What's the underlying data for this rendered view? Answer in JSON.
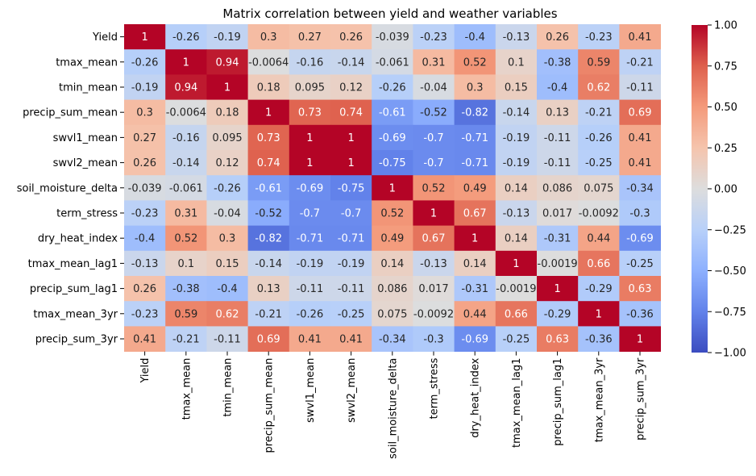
{
  "chart_data": {
    "type": "heatmap",
    "title": "Matrix correlation between yield and weather variables",
    "labels": [
      "Yield",
      "tmax_mean",
      "tmin_mean",
      "precip_sum_mean",
      "swvl1_mean",
      "swvl2_mean",
      "soil_moisture_delta",
      "term_stress",
      "dry_heat_index",
      "tmax_mean_lag1",
      "precip_sum_lag1",
      "tmax_mean_3yr",
      "precip_sum_3yr"
    ],
    "values": [
      [
        1,
        -0.26,
        -0.19,
        0.3,
        0.27,
        0.26,
        -0.039,
        -0.23,
        -0.4,
        -0.13,
        0.26,
        -0.23,
        0.41
      ],
      [
        -0.26,
        1,
        0.94,
        -0.0064,
        -0.16,
        -0.14,
        -0.061,
        0.31,
        0.52,
        0.1,
        -0.38,
        0.59,
        -0.21
      ],
      [
        -0.19,
        0.94,
        1,
        0.18,
        0.095,
        0.12,
        -0.26,
        -0.04,
        0.3,
        0.15,
        -0.4,
        0.62,
        -0.11
      ],
      [
        0.3,
        -0.0064,
        0.18,
        1,
        0.73,
        0.74,
        -0.61,
        -0.52,
        -0.82,
        -0.14,
        0.13,
        -0.21,
        0.69
      ],
      [
        0.27,
        -0.16,
        0.095,
        0.73,
        1,
        1,
        -0.69,
        -0.7,
        -0.71,
        -0.19,
        -0.11,
        -0.26,
        0.41
      ],
      [
        0.26,
        -0.14,
        0.12,
        0.74,
        1,
        1,
        -0.75,
        -0.7,
        -0.71,
        -0.19,
        -0.11,
        -0.25,
        0.41
      ],
      [
        -0.039,
        -0.061,
        -0.26,
        -0.61,
        -0.69,
        -0.75,
        1,
        0.52,
        0.49,
        0.14,
        0.086,
        0.075,
        -0.34
      ],
      [
        -0.23,
        0.31,
        -0.04,
        -0.52,
        -0.7,
        -0.7,
        0.52,
        1,
        0.67,
        -0.13,
        0.017,
        -0.0092,
        -0.3
      ],
      [
        -0.4,
        0.52,
        0.3,
        -0.82,
        -0.71,
        -0.71,
        0.49,
        0.67,
        1,
        0.14,
        -0.31,
        0.44,
        -0.69
      ],
      [
        -0.13,
        0.1,
        0.15,
        -0.14,
        -0.19,
        -0.19,
        0.14,
        -0.13,
        0.14,
        1,
        -0.0019,
        0.66,
        -0.25
      ],
      [
        0.26,
        -0.38,
        -0.4,
        0.13,
        -0.11,
        -0.11,
        0.086,
        0.017,
        -0.31,
        -0.0019,
        1,
        -0.29,
        0.63
      ],
      [
        -0.23,
        0.59,
        0.62,
        -0.21,
        -0.26,
        -0.25,
        0.075,
        -0.0092,
        0.44,
        0.66,
        -0.29,
        1,
        -0.36
      ],
      [
        0.41,
        -0.21,
        -0.11,
        0.69,
        0.41,
        0.41,
        -0.34,
        -0.3,
        -0.69,
        -0.25,
        0.63,
        -0.36,
        1
      ]
    ],
    "value_labels": [
      [
        "1",
        "-0.26",
        "-0.19",
        "0.3",
        "0.27",
        "0.26",
        "-0.039",
        "-0.23",
        "-0.4",
        "-0.13",
        "0.26",
        "-0.23",
        "0.41"
      ],
      [
        "-0.26",
        "1",
        "0.94",
        "-0.0064",
        "-0.16",
        "-0.14",
        "-0.061",
        "0.31",
        "0.52",
        "0.1",
        "-0.38",
        "0.59",
        "-0.21"
      ],
      [
        "-0.19",
        "0.94",
        "1",
        "0.18",
        "0.095",
        "0.12",
        "-0.26",
        "-0.04",
        "0.3",
        "0.15",
        "-0.4",
        "0.62",
        "-0.11"
      ],
      [
        "0.3",
        "-0.0064",
        "0.18",
        "1",
        "0.73",
        "0.74",
        "-0.61",
        "-0.52",
        "-0.82",
        "-0.14",
        "0.13",
        "-0.21",
        "0.69"
      ],
      [
        "0.27",
        "-0.16",
        "0.095",
        "0.73",
        "1",
        "1",
        "-0.69",
        "-0.7",
        "-0.71",
        "-0.19",
        "-0.11",
        "-0.26",
        "0.41"
      ],
      [
        "0.26",
        "-0.14",
        "0.12",
        "0.74",
        "1",
        "1",
        "-0.75",
        "-0.7",
        "-0.71",
        "-0.19",
        "-0.11",
        "-0.25",
        "0.41"
      ],
      [
        "-0.039",
        "-0.061",
        "-0.26",
        "-0.61",
        "-0.69",
        "-0.75",
        "1",
        "0.52",
        "0.49",
        "0.14",
        "0.086",
        "0.075",
        "-0.34"
      ],
      [
        "-0.23",
        "0.31",
        "-0.04",
        "-0.52",
        "-0.7",
        "-0.7",
        "0.52",
        "1",
        "0.67",
        "-0.13",
        "0.017",
        "-0.0092",
        "-0.3"
      ],
      [
        "-0.4",
        "0.52",
        "0.3",
        "-0.82",
        "-0.71",
        "-0.71",
        "0.49",
        "0.67",
        "1",
        "0.14",
        "-0.31",
        "0.44",
        "-0.69"
      ],
      [
        "-0.13",
        "0.1",
        "0.15",
        "-0.14",
        "-0.19",
        "-0.19",
        "0.14",
        "-0.13",
        "0.14",
        "1",
        "-0.0019",
        "0.66",
        "-0.25"
      ],
      [
        "0.26",
        "-0.38",
        "-0.4",
        "0.13",
        "-0.11",
        "-0.11",
        "0.086",
        "0.017",
        "-0.31",
        "-0.0019",
        "1",
        "-0.29",
        "0.63"
      ],
      [
        "-0.23",
        "0.59",
        "0.62",
        "-0.21",
        "-0.26",
        "-0.25",
        "0.075",
        "-0.0092",
        "0.44",
        "0.66",
        "-0.29",
        "1",
        "-0.36"
      ],
      [
        "0.41",
        "-0.21",
        "-0.11",
        "0.69",
        "0.41",
        "0.41",
        "-0.34",
        "-0.3",
        "-0.69",
        "-0.25",
        "0.63",
        "-0.36",
        "1"
      ]
    ],
    "colormap": "coolwarm",
    "vmin": -1,
    "vmax": 1,
    "colorbar_ticks": [
      1.0,
      0.75,
      0.5,
      0.25,
      0.0,
      -0.25,
      -0.5,
      -0.75,
      -1.0
    ],
    "colorbar_tick_labels": [
      "1.00",
      "0.75",
      "0.50",
      "0.25",
      "0.00",
      "−0.25",
      "−0.50",
      "−0.75",
      "−1.00"
    ],
    "colorbar_position": "right"
  }
}
